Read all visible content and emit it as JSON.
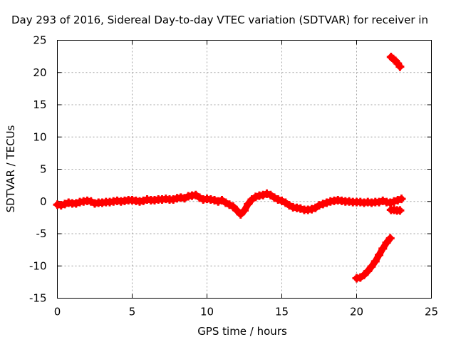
{
  "chart_data": {
    "type": "scatter",
    "title": "Day 293 of 2016, Sidereal Day-to-day VTEC variation (SDTVAR) for receiver in",
    "xlabel": "GPS time / hours",
    "ylabel": "SDTVAR / TECUs",
    "xlim": [
      0,
      25
    ],
    "ylim": [
      -15,
      25
    ],
    "x_ticks": [
      "0",
      "5",
      "10",
      "15",
      "20",
      "25"
    ],
    "y_ticks": [
      "-15",
      "-10",
      "-5",
      "0",
      "5",
      "10",
      "15",
      "20",
      "25"
    ],
    "grid": true,
    "legend": "none",
    "marker": "plus",
    "color": "#ff0000",
    "series": [
      {
        "x": [
          0.0,
          0.25,
          0.5,
          0.75,
          1.0,
          1.25,
          1.5,
          1.75,
          2.0,
          2.25,
          2.5,
          2.75,
          3.0,
          3.25,
          3.5,
          3.75,
          4.0,
          4.25,
          4.5,
          4.75,
          5.0,
          5.25,
          5.5,
          5.75,
          6.0,
          6.25,
          6.5,
          6.75,
          7.0,
          7.25,
          7.5,
          7.75,
          8.0,
          8.25,
          8.5,
          8.75,
          9.0,
          9.25,
          9.5,
          9.75,
          10.0,
          10.25,
          10.5,
          10.75,
          11.0,
          11.25,
          11.5,
          11.75,
          12.0,
          12.25,
          12.5,
          12.75,
          13.0,
          13.25,
          13.5,
          13.75,
          14.0,
          14.25,
          14.5,
          14.75,
          15.0,
          15.25,
          15.5,
          15.75,
          16.0,
          16.25,
          16.5,
          16.75,
          17.0,
          17.25,
          17.5,
          17.75,
          18.0,
          18.25,
          18.5,
          18.75,
          19.0,
          19.25,
          19.5,
          19.75,
          20.0,
          20.25,
          20.5,
          20.75,
          21.0,
          21.25,
          21.5,
          21.75,
          22.0,
          22.25,
          22.5,
          22.75,
          23.0
        ],
        "y": [
          -0.5,
          -0.6,
          -0.4,
          -0.2,
          -0.3,
          -0.3,
          -0.1,
          0.0,
          0.1,
          0.0,
          -0.3,
          -0.2,
          -0.2,
          -0.1,
          -0.1,
          0.0,
          0.1,
          0.0,
          0.1,
          0.2,
          0.2,
          0.1,
          0.0,
          0.1,
          0.3,
          0.2,
          0.2,
          0.3,
          0.3,
          0.4,
          0.3,
          0.3,
          0.5,
          0.6,
          0.5,
          0.8,
          0.9,
          1.0,
          0.6,
          0.3,
          0.4,
          0.3,
          0.2,
          0.0,
          0.2,
          -0.2,
          -0.5,
          -0.8,
          -1.4,
          -2.0,
          -1.4,
          -0.4,
          0.3,
          0.7,
          0.9,
          1.0,
          1.2,
          1.0,
          0.6,
          0.3,
          0.1,
          -0.2,
          -0.6,
          -0.9,
          -1.0,
          -1.1,
          -1.3,
          -1.3,
          -1.2,
          -1.0,
          -0.6,
          -0.4,
          -0.2,
          0.0,
          0.1,
          0.2,
          0.1,
          0.0,
          0.0,
          -0.1,
          -0.1,
          -0.1,
          -0.2,
          -0.1,
          -0.2,
          -0.1,
          -0.1,
          0.1,
          -0.1,
          -0.2,
          0.0,
          0.2,
          0.4
        ]
      },
      {
        "x": [
          22.3,
          22.5,
          22.7,
          22.9
        ],
        "y": [
          -1.3,
          -1.3,
          -1.4,
          -1.4
        ]
      },
      {
        "x": [
          20.0,
          20.25,
          20.5,
          20.75,
          21.0,
          21.25,
          21.5,
          21.75,
          22.0,
          22.25
        ],
        "y": [
          -11.9,
          -11.8,
          -11.4,
          -10.8,
          -10.1,
          -9.3,
          -8.3,
          -7.3,
          -6.4,
          -5.7
        ]
      },
      {
        "x": [
          22.3,
          22.45,
          22.6,
          22.75,
          22.9
        ],
        "y": [
          22.4,
          22.1,
          21.8,
          21.4,
          20.9
        ]
      }
    ]
  }
}
